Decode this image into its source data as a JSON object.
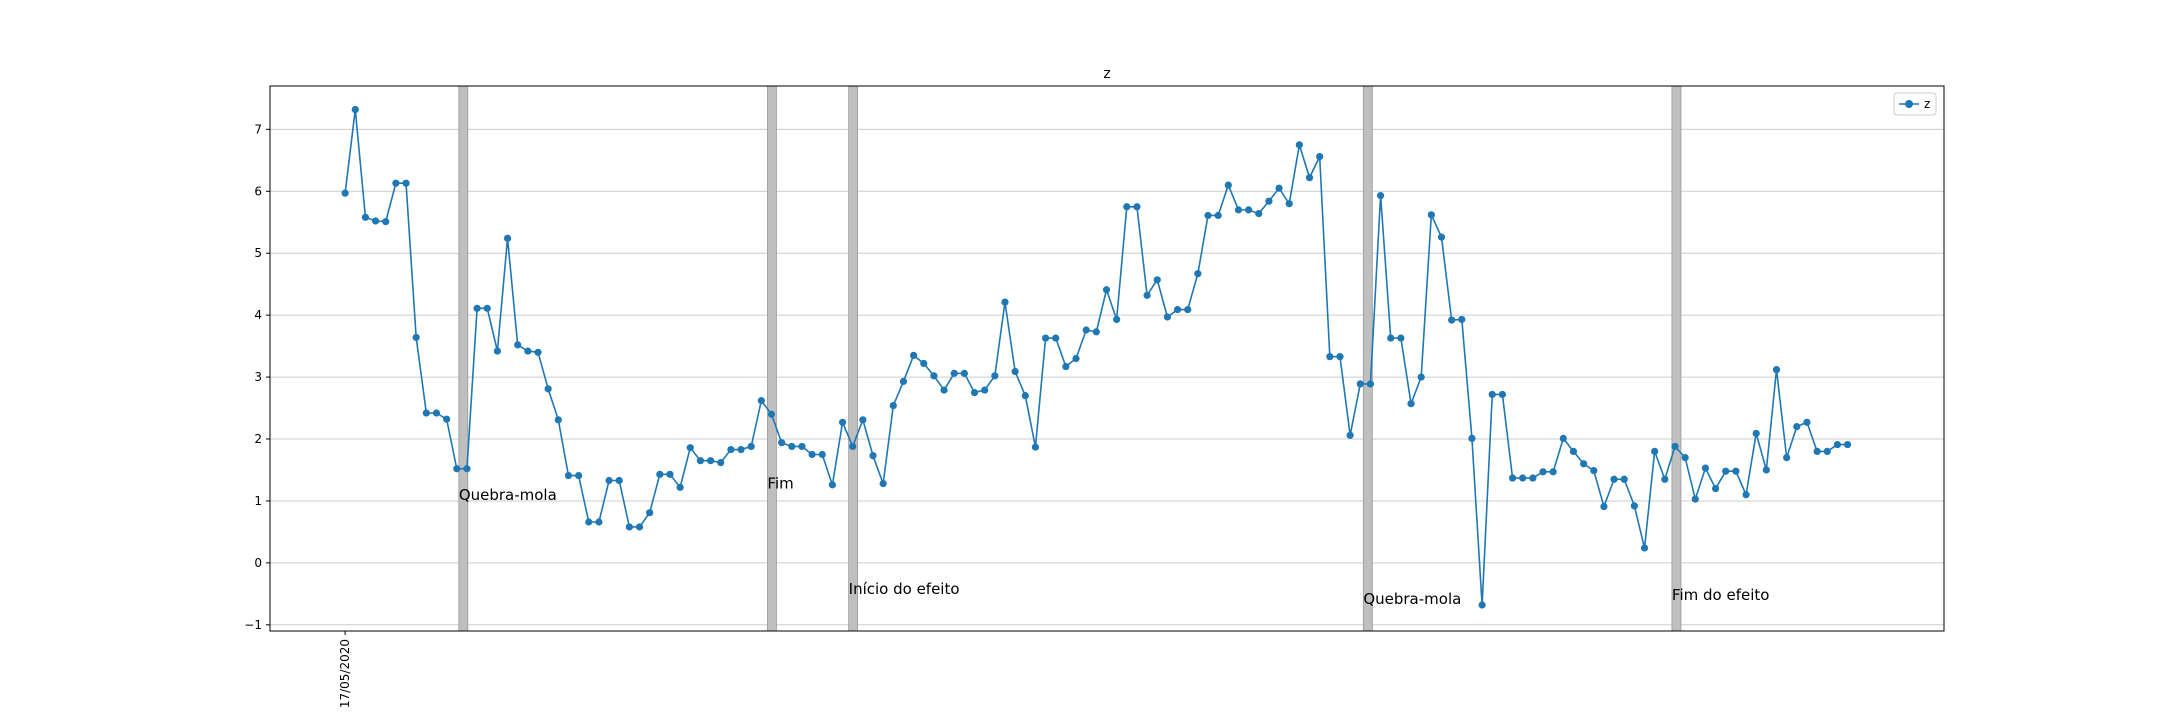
{
  "chart_data": {
    "type": "line",
    "title": "z",
    "xlabel": "",
    "ylabel": "",
    "x_tick_labels": [
      "17/05/2020"
    ],
    "ylim": [
      -1.1,
      7.7
    ],
    "y_ticks": [
      -1,
      0,
      1,
      2,
      3,
      4,
      5,
      6,
      7
    ],
    "grid": "horizontal",
    "legend_position": "top-right",
    "colors": {
      "series": "#1f77b4",
      "band": "#bfbfbf",
      "band_edge": "#999999",
      "grid": "#cccccc"
    },
    "series": [
      {
        "name": "z",
        "values": [
          5.97,
          7.32,
          5.58,
          5.52,
          5.51,
          6.13,
          6.13,
          3.64,
          2.42,
          2.42,
          2.32,
          1.52,
          1.52,
          4.11,
          4.11,
          3.42,
          5.24,
          3.52,
          3.42,
          3.4,
          2.81,
          2.31,
          1.41,
          1.41,
          0.66,
          0.66,
          1.33,
          1.33,
          0.58,
          0.58,
          0.81,
          1.43,
          1.43,
          1.22,
          1.86,
          1.65,
          1.65,
          1.62,
          1.83,
          1.83,
          1.88,
          2.62,
          2.4,
          1.94,
          1.88,
          1.88,
          1.75,
          1.75,
          1.26,
          2.27,
          1.88,
          2.31,
          1.73,
          1.28,
          2.54,
          2.93,
          3.35,
          3.22,
          3.02,
          2.79,
          3.06,
          3.06,
          2.75,
          2.79,
          3.02,
          4.21,
          3.09,
          2.7,
          1.87,
          3.63,
          3.63,
          3.17,
          3.3,
          3.76,
          3.73,
          4.41,
          3.93,
          5.75,
          5.75,
          4.32,
          4.57,
          3.97,
          4.09,
          4.09,
          4.67,
          5.61,
          5.61,
          6.1,
          5.7,
          5.7,
          5.64,
          5.84,
          6.05,
          5.8,
          6.75,
          6.22,
          6.56,
          3.33,
          3.33,
          2.06,
          2.89,
          2.89,
          5.93,
          3.63,
          3.63,
          2.57,
          3.0,
          5.62,
          5.26,
          3.92,
          3.93,
          2.01,
          -0.68,
          2.72,
          2.72,
          1.37,
          1.37,
          1.37,
          1.47,
          1.47,
          2.01,
          1.8,
          1.6,
          1.49,
          0.91,
          1.35,
          1.35,
          0.92,
          0.24,
          1.8,
          1.35,
          1.88,
          1.7,
          1.03,
          1.53,
          1.2,
          1.48,
          1.48,
          1.1,
          2.09,
          1.5,
          3.12,
          1.7,
          2.2,
          2.27,
          1.8,
          1.8,
          1.91,
          1.91
        ]
      }
    ],
    "x_range": [
      -7.4,
      157.5
    ],
    "bands": [
      {
        "x": 11.2
      },
      {
        "x": 41.6
      },
      {
        "x": 49.6
      },
      {
        "x": 100.3
      },
      {
        "x": 130.7
      }
    ],
    "annotations": [
      {
        "text": "Quebra-mola",
        "x": 11.2,
        "y": 1.1
      },
      {
        "text": "Fim",
        "x": 41.6,
        "y": 1.28
      },
      {
        "text": "Início do efeito",
        "x": 49.6,
        "y": -0.42
      },
      {
        "text": "Quebra-mola",
        "x": 100.3,
        "y": -0.58
      },
      {
        "text": "Fim do efeito",
        "x": 130.7,
        "y": -0.52
      }
    ]
  }
}
